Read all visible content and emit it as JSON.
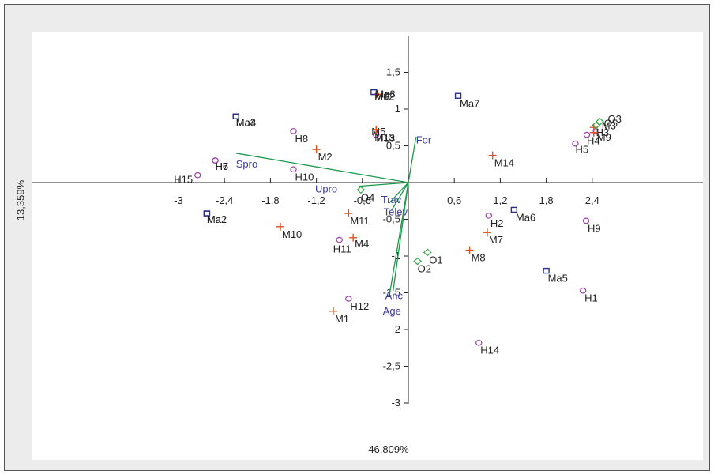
{
  "chart_data": {
    "type": "scatter",
    "xlabel": "46,809%",
    "ylabel": "13,359%",
    "xlim": [
      -3.1,
      3.1
    ],
    "ylim": [
      -3.2,
      2.1
    ],
    "x_ticks": [
      -3,
      -2.4,
      -1.8,
      -1.2,
      -0.6,
      0.6,
      1.2,
      1.8,
      2.4
    ],
    "x_tick_labels": [
      "-3",
      "-2,4",
      "-1,8",
      "-1,2",
      "-0,6",
      "0,6",
      "1,2",
      "1,8",
      "2,4"
    ],
    "y_ticks": [
      1.5,
      1,
      0.5,
      -0.5,
      -1,
      -1.5,
      -2,
      -2.5,
      -3
    ],
    "y_tick_labels": [
      "1,5",
      "1",
      "0,5",
      "-0,5",
      "-1",
      "-1,5",
      "-2",
      "-2,5",
      "-3"
    ],
    "colors": {
      "H": "#9b3fa8",
      "M": "#e0531f",
      "Ma": "#2b2f8a",
      "O": "#3aa64a",
      "arrow": "#1a9a4a",
      "var": "#3b3b9a"
    },
    "series": [
      {
        "name": "H",
        "marker": "circle",
        "points": [
          {
            "label": "H1",
            "x": 2.28,
            "y": -1.47
          },
          {
            "label": "H2",
            "x": 1.05,
            "y": -0.45
          },
          {
            "label": "H3",
            "x": 2.45,
            "y": 0.7
          },
          {
            "label": "H4",
            "x": 2.33,
            "y": 0.65
          },
          {
            "label": "H5",
            "x": 2.18,
            "y": 0.53
          },
          {
            "label": "H6",
            "x": -2.52,
            "y": 0.3
          },
          {
            "label": "H7",
            "x": -2.52,
            "y": 0.3
          },
          {
            "label": "H8",
            "x": -1.5,
            "y": 0.7
          },
          {
            "label": "H9",
            "x": 2.32,
            "y": -0.52
          },
          {
            "label": "H10",
            "x": -1.5,
            "y": 0.18
          },
          {
            "label": "H11",
            "x": -0.9,
            "y": -0.78
          },
          {
            "label": "H12",
            "x": -0.78,
            "y": -1.58
          },
          {
            "label": "H13",
            "x": -0.42,
            "y": 0.65
          },
          {
            "label": "H14",
            "x": 0.92,
            "y": -2.18
          },
          {
            "label": "H15",
            "x": -2.75,
            "y": 0.1
          }
        ]
      },
      {
        "name": "M",
        "marker": "plus",
        "points": [
          {
            "label": "M1",
            "x": -0.98,
            "y": -1.75
          },
          {
            "label": "M2",
            "x": -1.2,
            "y": 0.45
          },
          {
            "label": "M3",
            "x": 2.42,
            "y": 0.75
          },
          {
            "label": "M4",
            "x": -0.72,
            "y": -0.75
          },
          {
            "label": "M5",
            "x": -0.42,
            "y": 0.72
          },
          {
            "label": "M6",
            "x": -0.42,
            "y": 1.2
          },
          {
            "label": "M7",
            "x": 1.03,
            "y": -0.68
          },
          {
            "label": "M8",
            "x": 0.8,
            "y": -0.92
          },
          {
            "label": "M9",
            "x": 2.42,
            "y": 0.68
          },
          {
            "label": "M10",
            "x": -1.67,
            "y": -0.6
          },
          {
            "label": "M11",
            "x": -0.78,
            "y": -0.42
          },
          {
            "label": "M12",
            "x": -0.4,
            "y": 1.2
          },
          {
            "label": "M13",
            "x": -0.42,
            "y": 0.72
          },
          {
            "label": "M14",
            "x": 1.1,
            "y": 0.37
          }
        ]
      },
      {
        "name": "Ma",
        "marker": "square",
        "points": [
          {
            "label": "Ma1",
            "x": -2.63,
            "y": -0.42
          },
          {
            "label": "Ma2",
            "x": -2.63,
            "y": -0.42
          },
          {
            "label": "Ma3",
            "x": -2.25,
            "y": 0.9
          },
          {
            "label": "Ma4",
            "x": -2.25,
            "y": 0.9
          },
          {
            "label": "Ma5",
            "x": 1.8,
            "y": -1.2
          },
          {
            "label": "Ma6",
            "x": 1.38,
            "y": -0.37
          },
          {
            "label": "Ma7",
            "x": 0.65,
            "y": 1.18
          },
          {
            "label": "Ma8",
            "x": -0.45,
            "y": 1.23
          }
        ]
      },
      {
        "name": "O",
        "marker": "diamond",
        "points": [
          {
            "label": "O1",
            "x": 0.25,
            "y": -0.95
          },
          {
            "label": "O2",
            "x": 0.12,
            "y": -1.07
          },
          {
            "label": "O3",
            "x": 2.5,
            "y": 0.83
          },
          {
            "label": "O4",
            "x": -0.62,
            "y": -0.1
          },
          {
            "label": "O5",
            "x": 2.45,
            "y": 0.78
          }
        ]
      }
    ],
    "vectors": [
      {
        "label": "Spro",
        "x": -2.25,
        "y": 0.4
      },
      {
        "label": "Upro",
        "x": -0.65,
        "y": -0.05
      },
      {
        "label": "For",
        "x": 0.1,
        "y": 0.62
      },
      {
        "label": "Trav",
        "x": -0.25,
        "y": -0.28
      },
      {
        "label": "Telev",
        "x": -0.22,
        "y": -0.38
      },
      {
        "label": "Anc",
        "x": -0.2,
        "y": -1.48
      },
      {
        "label": "Age",
        "x": -0.25,
        "y": -1.55
      }
    ]
  }
}
